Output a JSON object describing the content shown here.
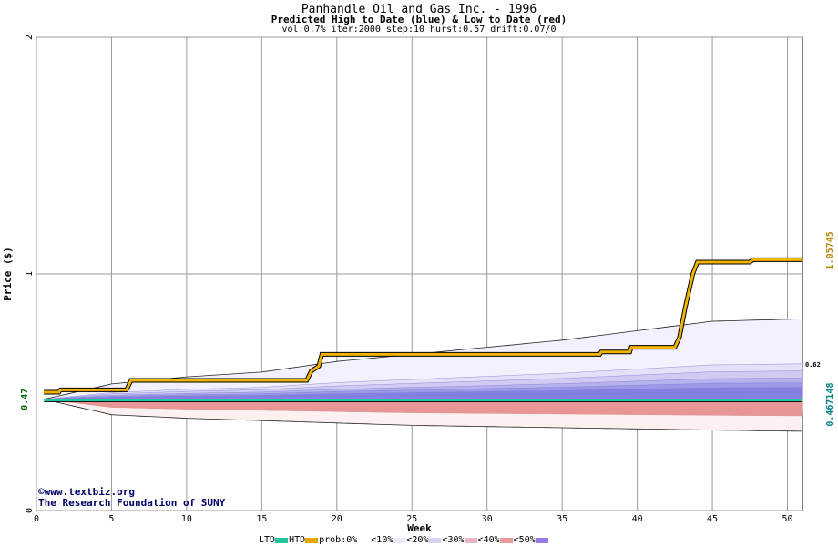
{
  "titles": {
    "main": "Panhandle Oil and Gas Inc. - 1996",
    "sub": "Predicted High to Date (blue) &  Low to Date (red)",
    "params": "vol:0.7% iter:2000 step:10 hurst:0.57 drift:0.07/0"
  },
  "credits": {
    "site": "©www.textbiz.org",
    "org": "The Research Foundation of SUNY"
  },
  "legend": {
    "ltd": "LTD",
    "htd": "HTD",
    "prob": "prob:0%",
    "b10": "<10%",
    "b20": "<20%",
    "b30": "<30%",
    "b40": "<40%",
    "b50": "<50%"
  },
  "chart_data": {
    "type": "area",
    "xlabel": "Week",
    "ylabel": "Price ($)",
    "xlim": [
      0,
      51
    ],
    "ylim": [
      0,
      2
    ],
    "x_ticks": [
      0,
      5,
      10,
      15,
      20,
      25,
      30,
      35,
      40,
      45,
      50
    ],
    "y_ticks": [
      0,
      1,
      2
    ],
    "grid": true,
    "start_price_label": "0.47",
    "start_price": 0.47,
    "right_labels": {
      "htd_final": "1.05745",
      "ltd_final": "0.467148",
      "band_top": "0.62"
    },
    "colors": {
      "htd": "#e6a800",
      "ltd": "#22c7a0",
      "blue_band": "#6a6ae0",
      "red_band": "#e88a8a",
      "right_htd_label": "#b8860b",
      "right_ltd_label": "#008080",
      "start_label": "#006400"
    },
    "htd_path": [
      [
        0.5,
        0.5
      ],
      [
        1.5,
        0.5
      ],
      [
        1.6,
        0.51
      ],
      [
        6,
        0.51
      ],
      [
        6.3,
        0.55
      ],
      [
        18,
        0.55
      ],
      [
        18.3,
        0.59
      ],
      [
        18.8,
        0.61
      ],
      [
        19,
        0.66
      ],
      [
        37.5,
        0.66
      ],
      [
        37.6,
        0.67
      ],
      [
        39.5,
        0.67
      ],
      [
        39.6,
        0.69
      ],
      [
        42.5,
        0.69
      ],
      [
        42.8,
        0.73
      ],
      [
        43.2,
        0.86
      ],
      [
        43.7,
        1.0
      ],
      [
        44,
        1.05
      ],
      [
        47.5,
        1.05
      ],
      [
        47.7,
        1.06
      ],
      [
        51,
        1.06
      ]
    ],
    "ltd_value": 0.467,
    "blue_envelope": [
      [
        0.5,
        0.47
      ],
      [
        5,
        0.535
      ],
      [
        10,
        0.565
      ],
      [
        15,
        0.585
      ],
      [
        20,
        0.63
      ],
      [
        25,
        0.66
      ],
      [
        30,
        0.69
      ],
      [
        35,
        0.72
      ],
      [
        40,
        0.76
      ],
      [
        45,
        0.8
      ],
      [
        51,
        0.81
      ]
    ],
    "red_envelope": [
      [
        0.5,
        0.47
      ],
      [
        5,
        0.405
      ],
      [
        10,
        0.39
      ],
      [
        15,
        0.38
      ],
      [
        20,
        0.37
      ],
      [
        25,
        0.36
      ],
      [
        30,
        0.355
      ],
      [
        35,
        0.35
      ],
      [
        40,
        0.345
      ],
      [
        45,
        0.34
      ],
      [
        51,
        0.335
      ]
    ],
    "blue_quantile_ends": [
      0.62,
      0.59,
      0.56,
      0.54,
      0.52,
      0.5
    ],
    "red_quantile_ends": [
      0.46,
      0.44,
      0.43,
      0.42,
      0.41,
      0.4
    ]
  }
}
